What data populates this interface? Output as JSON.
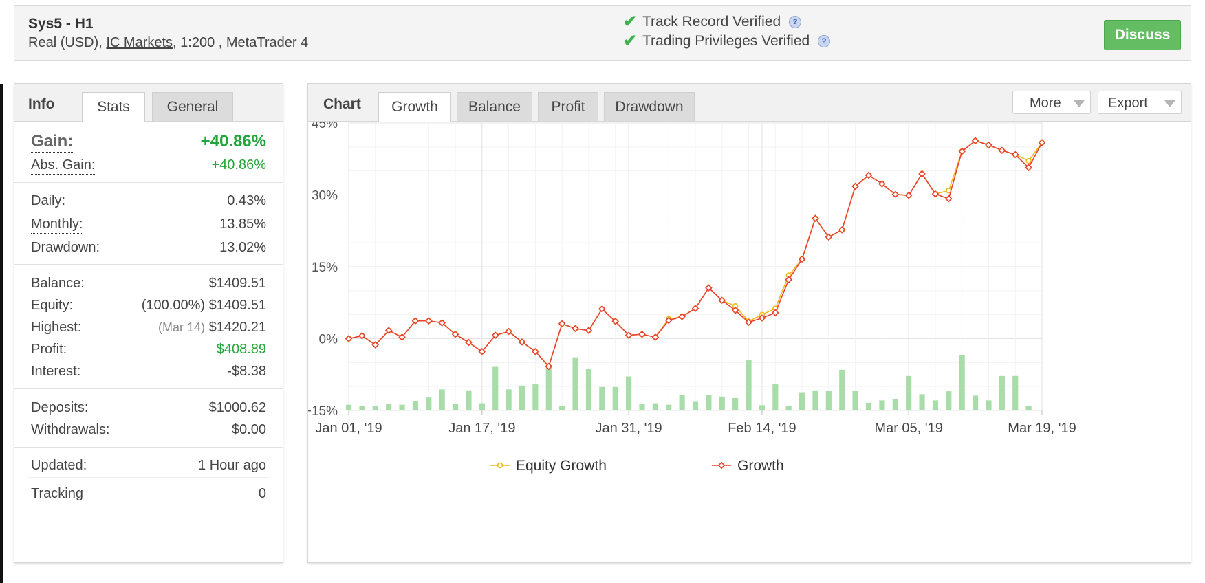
{
  "header": {
    "title": "Sys5 - H1",
    "account_type": "Real (USD),",
    "broker": "IC Markets",
    "details": ", 1:200 , MetaTrader 4",
    "verifications": [
      "Track Record Verified",
      "Trading Privileges Verified"
    ],
    "help_glyph": "?",
    "discuss_label": "Discuss"
  },
  "info": {
    "tab_label": "Info",
    "tabs": [
      "Stats",
      "General"
    ],
    "gain": {
      "label": "Gain:",
      "value": "+40.86%"
    },
    "abs_gain": {
      "label": "Abs. Gain:",
      "value": "+40.86%"
    },
    "daily": {
      "label": "Daily:",
      "value": "0.43%"
    },
    "monthly": {
      "label": "Monthly:",
      "value": "13.85%"
    },
    "drawdown": {
      "label": "Drawdown:",
      "value": "13.02%"
    },
    "balance": {
      "label": "Balance:",
      "value": "$1409.51"
    },
    "equity": {
      "label": "Equity:",
      "note": "(100.00%)",
      "value": "$1409.51"
    },
    "highest": {
      "label": "Highest:",
      "note": "(Mar 14)",
      "value": "$1420.21"
    },
    "profit": {
      "label": "Profit:",
      "value": "$408.89"
    },
    "interest": {
      "label": "Interest:",
      "value": "-$8.38"
    },
    "deposits": {
      "label": "Deposits:",
      "value": "$1000.62"
    },
    "withdrawals": {
      "label": "Withdrawals:",
      "value": "$0.00"
    },
    "updated": {
      "label": "Updated:",
      "value": "1 Hour ago"
    },
    "tracking": {
      "label": "Tracking",
      "value": "0"
    }
  },
  "chart_panel": {
    "tab_label": "Chart",
    "tabs": [
      "Growth",
      "Balance",
      "Profit",
      "Drawdown"
    ],
    "more_label": "More",
    "export_label": "Export"
  },
  "colors": {
    "growth": "#e8432e",
    "equity": "#f0b81d",
    "bars": "#a8dca8",
    "positive": "#22a63a",
    "discuss": "#64bd63"
  },
  "chart_data": {
    "type": "line",
    "title": "",
    "xlabel": "",
    "ylabel": "",
    "ylim": [
      -15,
      45
    ],
    "yticks": [
      -15,
      0,
      15,
      30,
      45
    ],
    "ytick_labels": [
      "−15%",
      "0%",
      "15%",
      "30%",
      "45%"
    ],
    "xtick_labels": [
      "Jan 01, '19",
      "Jan 17, '19",
      "Jan 31, '19",
      "Feb 14, '19",
      "Mar 05, '19",
      "Mar 19, '19"
    ],
    "grid": true,
    "legend_position": "bottom",
    "series": [
      {
        "name": "Equity Growth",
        "values": [
          0.0,
          0.6,
          -1.3,
          1.7,
          0.3,
          3.7,
          3.7,
          3.3,
          0.9,
          -0.8,
          -2.7,
          0.7,
          1.5,
          -0.7,
          -2.7,
          -5.8,
          3.1,
          2.1,
          1.7,
          6.2,
          3.6,
          0.7,
          0.9,
          0.3,
          4.1,
          4.6,
          6.3,
          10.6,
          8.0,
          6.8,
          3.6,
          5.0,
          6.3,
          13.2,
          16.6,
          25.1,
          21.2,
          22.7,
          31.8,
          34.1,
          32.3,
          30.1,
          29.9,
          34.4,
          30.2,
          30.9,
          39.1,
          41.3,
          40.4,
          39.3,
          38.4,
          37.1,
          40.9
        ]
      },
      {
        "name": "Growth",
        "values": [
          0.0,
          0.6,
          -1.3,
          1.7,
          0.3,
          3.7,
          3.7,
          3.3,
          0.9,
          -0.8,
          -2.7,
          0.7,
          1.5,
          -0.7,
          -2.7,
          -5.8,
          3.1,
          2.1,
          1.7,
          6.2,
          3.6,
          0.7,
          0.9,
          0.3,
          3.8,
          4.6,
          6.3,
          10.6,
          8.0,
          5.9,
          3.4,
          4.3,
          5.4,
          12.3,
          16.6,
          25.1,
          21.2,
          22.7,
          31.8,
          34.1,
          32.3,
          30.1,
          29.9,
          34.4,
          30.2,
          29.2,
          39.1,
          41.3,
          40.4,
          39.3,
          38.4,
          35.7,
          40.9
        ]
      },
      {
        "name": "",
        "type": "bar",
        "values": [
          -13.8,
          -14.1,
          -14.1,
          -13.6,
          -13.8,
          -13.1,
          -12.3,
          -10.6,
          -13.6,
          -10.8,
          -13.5,
          -5.9,
          -10.6,
          -9.8,
          -9.5,
          -5.6,
          -14.0,
          -3.9,
          -6.3,
          -10.1,
          -10.1,
          -7.9,
          -13.7,
          -13.5,
          -13.8,
          -11.8,
          -13.2,
          -11.8,
          -12.1,
          -12.4,
          -4.4,
          -13.9,
          -9.4,
          -14.0,
          -11.2,
          -10.8,
          -10.9,
          -6.5,
          -10.9,
          -13.4,
          -12.9,
          -12.6,
          -7.8,
          -11.6,
          -12.9,
          -11.0,
          -3.5,
          -11.9,
          -12.9,
          -7.8,
          -7.8,
          -14.0
        ]
      }
    ]
  }
}
